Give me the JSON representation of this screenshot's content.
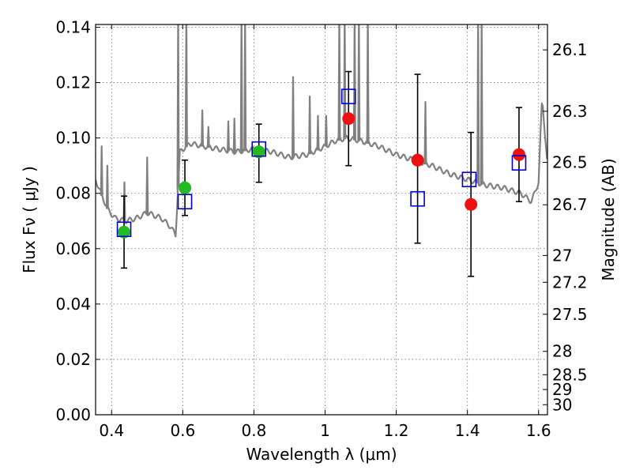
{
  "chart_data": {
    "type": "scatter",
    "xlabel": "Wavelength  λ (μm)",
    "ylabel": "Flux  Fν  ( μJy )",
    "ylabel_right": "Magnitude (AB)",
    "xlim": [
      0.355,
      1.625
    ],
    "ylim": [
      0.0,
      0.141
    ],
    "grid": true,
    "x_ticks": [
      "0.4",
      "0.6",
      "0.8",
      "1",
      "1.2",
      "1.4",
      "1.6"
    ],
    "y_ticks": [
      "0.00",
      "0.02",
      "0.04",
      "0.06",
      "0.08",
      "0.10",
      "0.12",
      "0.14"
    ],
    "right_ticks": [
      {
        "label": "26.1",
        "mag": 26.1
      },
      {
        "label": "26.3",
        "mag": 26.3
      },
      {
        "label": "26.5",
        "mag": 26.5
      },
      {
        "label": "26.7",
        "mag": 26.7
      },
      {
        "label": "27",
        "mag": 27.0
      },
      {
        "label": "27.2",
        "mag": 27.2
      },
      {
        "label": "27.5",
        "mag": 27.5
      },
      {
        "label": "28",
        "mag": 28.0
      },
      {
        "label": "28.5",
        "mag": 28.5
      },
      {
        "label": "29",
        "mag": 29.0
      },
      {
        "label": "30",
        "mag": 30.0
      }
    ],
    "series": [
      {
        "marker": "circle",
        "color": "#22bb22",
        "points": [
          {
            "x": 0.435,
            "y": 0.066,
            "err_lo": 0.053,
            "err_hi": 0.079
          },
          {
            "x": 0.606,
            "y": 0.082,
            "err_lo": 0.072,
            "err_hi": 0.092
          },
          {
            "x": 0.814,
            "y": 0.095,
            "err_lo": 0.084,
            "err_hi": 0.105
          }
        ]
      },
      {
        "marker": "circle",
        "color": "#ee1111",
        "points": [
          {
            "x": 1.066,
            "y": 0.107,
            "err_lo": 0.09,
            "err_hi": 0.124
          },
          {
            "x": 1.26,
            "y": 0.092,
            "err_lo": 0.062,
            "err_hi": 0.123
          },
          {
            "x": 1.41,
            "y": 0.076,
            "err_lo": 0.05,
            "err_hi": 0.102
          },
          {
            "x": 1.545,
            "y": 0.094,
            "err_lo": 0.077,
            "err_hi": 0.111
          }
        ]
      },
      {
        "marker": "open-square",
        "color": "#0000cc",
        "points": [
          {
            "x": 0.435,
            "y": 0.067
          },
          {
            "x": 0.606,
            "y": 0.077
          },
          {
            "x": 0.814,
            "y": 0.096
          },
          {
            "x": 1.066,
            "y": 0.115
          },
          {
            "x": 1.26,
            "y": 0.078
          },
          {
            "x": 1.405,
            "y": 0.085
          },
          {
            "x": 1.545,
            "y": 0.091
          }
        ]
      }
    ],
    "model_spectrum": {
      "color": "#808080",
      "continuum": [
        [
          0.355,
          0.085
        ],
        [
          0.37,
          0.08
        ],
        [
          0.39,
          0.074
        ],
        [
          0.41,
          0.071
        ],
        [
          0.44,
          0.07
        ],
        [
          0.47,
          0.071
        ],
        [
          0.5,
          0.073
        ],
        [
          0.54,
          0.071
        ],
        [
          0.565,
          0.068
        ],
        [
          0.58,
          0.065
        ],
        [
          0.592,
          0.095
        ],
        [
          0.62,
          0.098
        ],
        [
          0.66,
          0.097
        ],
        [
          0.7,
          0.096
        ],
        [
          0.75,
          0.095
        ],
        [
          0.8,
          0.096
        ],
        [
          0.85,
          0.095
        ],
        [
          0.9,
          0.093
        ],
        [
          0.95,
          0.094
        ],
        [
          1.0,
          0.097
        ],
        [
          1.03,
          0.099
        ],
        [
          1.06,
          0.1
        ],
        [
          1.1,
          0.099
        ],
        [
          1.15,
          0.097
        ],
        [
          1.2,
          0.094
        ],
        [
          1.25,
          0.092
        ],
        [
          1.3,
          0.09
        ],
        [
          1.35,
          0.087
        ],
        [
          1.4,
          0.085
        ],
        [
          1.45,
          0.083
        ],
        [
          1.5,
          0.082
        ],
        [
          1.55,
          0.08
        ],
        [
          1.58,
          0.077
        ],
        [
          1.6,
          0.084
        ],
        [
          1.61,
          0.115
        ],
        [
          1.625,
          0.09
        ]
      ],
      "lines": [
        [
          0.372,
          0.092
        ],
        [
          0.388,
          0.085
        ],
        [
          0.436,
          0.079
        ],
        [
          0.5,
          0.088
        ],
        [
          0.587,
          0.141
        ],
        [
          0.61,
          0.141
        ],
        [
          0.655,
          0.105
        ],
        [
          0.672,
          0.099
        ],
        [
          0.728,
          0.101
        ],
        [
          0.745,
          0.102
        ],
        [
          0.765,
          0.141
        ],
        [
          0.775,
          0.141
        ],
        [
          0.91,
          0.117
        ],
        [
          0.957,
          0.11
        ],
        [
          0.98,
          0.103
        ],
        [
          1.003,
          0.103
        ],
        [
          1.04,
          0.141
        ],
        [
          1.055,
          0.141
        ],
        [
          1.083,
          0.141
        ],
        [
          1.095,
          0.141
        ],
        [
          1.12,
          0.141
        ],
        [
          1.282,
          0.108
        ],
        [
          1.43,
          0.141
        ],
        [
          1.44,
          0.141
        ]
      ]
    }
  }
}
